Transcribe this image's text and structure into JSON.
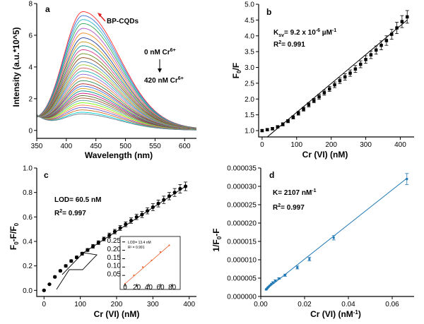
{
  "chart_data": [
    {
      "panel": "a",
      "type": "line",
      "xlabel": "Wavelength (nm)",
      "ylabel": "Intensity (a.u.*10^5)",
      "xlim": [
        350,
        620
      ],
      "ylim": [
        -0.5,
        8
      ],
      "xticks": [
        350,
        400,
        450,
        500,
        550,
        600
      ],
      "yticks": [
        0,
        2,
        4,
        6,
        8
      ],
      "peak_x": 428,
      "peak_values": [
        7.45,
        7.2,
        6.95,
        6.7,
        6.4,
        6.1,
        5.8,
        5.55,
        5.3,
        5.05,
        4.8,
        4.55,
        4.3,
        4.1,
        3.9,
        3.7,
        3.5,
        3.3,
        3.1,
        2.9,
        2.75,
        2.6,
        2.45,
        2.3,
        2.15,
        2.0,
        1.85,
        1.7,
        1.55,
        1.4,
        1.25,
        1.1,
        1.0
      ],
      "series_colors": [
        "#ff2a2a",
        "#3a6fd6",
        "#29b5c7",
        "#2fa84f",
        "#b14fc5",
        "#f08a24",
        "#1f3d99",
        "#c79b1a",
        "#0e8f8f",
        "#d63a8f",
        "#6b8e23",
        "#8b4513",
        "#4682b4",
        "#9acd32",
        "#cd5c5c",
        "#20b2aa",
        "#9370db",
        "#e07b39",
        "#2e8b57",
        "#b22222",
        "#4169e1",
        "#daa520",
        "#008b8b",
        "#c71585",
        "#556b2f",
        "#a0522d",
        "#5f9ea0",
        "#7cfc00",
        "#ff7f50",
        "#6a5acd",
        "#d2691e",
        "#00ced1",
        "#708090"
      ],
      "labels": {
        "panel_letter": "a",
        "series_label": "BP-CQDs",
        "start_conc": "0 nM Cr",
        "start_sup": "6+",
        "end_conc": "420 nM Cr",
        "end_sup": "6+"
      }
    },
    {
      "panel": "b",
      "type": "scatter",
      "xlabel": "Cr (VI) (nM)",
      "ylabel_main": "F",
      "ylabel_sub": "0",
      "ylabel_tail": "/F",
      "xlim": [
        -10,
        440
      ],
      "ylim": [
        0.8,
        5.0
      ],
      "xticks": [
        0,
        100,
        200,
        300,
        400
      ],
      "yticks": [
        1.0,
        1.5,
        2.0,
        2.5,
        3.0,
        3.5,
        4.0,
        4.5,
        5.0
      ],
      "x": [
        0,
        15,
        30,
        45,
        60,
        75,
        90,
        105,
        120,
        135,
        150,
        165,
        180,
        195,
        210,
        225,
        240,
        255,
        270,
        285,
        300,
        315,
        330,
        345,
        360,
        375,
        390,
        405,
        420
      ],
      "y": [
        1.0,
        1.03,
        1.06,
        1.12,
        1.2,
        1.3,
        1.42,
        1.55,
        1.68,
        1.82,
        1.95,
        2.07,
        2.2,
        2.32,
        2.45,
        2.58,
        2.7,
        2.82,
        2.95,
        3.1,
        3.25,
        3.4,
        3.55,
        3.7,
        3.85,
        4.05,
        4.25,
        4.45,
        4.6
      ],
      "err": [
        0.03,
        0.03,
        0.04,
        0.04,
        0.05,
        0.05,
        0.05,
        0.06,
        0.06,
        0.07,
        0.07,
        0.08,
        0.08,
        0.08,
        0.09,
        0.09,
        0.1,
        0.1,
        0.11,
        0.11,
        0.12,
        0.12,
        0.13,
        0.14,
        0.15,
        0.16,
        0.18,
        0.19,
        0.2
      ],
      "fit": {
        "x": [
          15,
          420
        ],
        "y": [
          0.8,
          4.5
        ]
      },
      "labels": {
        "panel_letter": "b",
        "ksv_prefix": "K",
        "ksv_sub": "sv",
        "ksv_value": "= 9.2 x 10",
        "ksv_exp": "-6",
        "ksv_unit": " µM",
        "ksv_unit_exp": "-1",
        "r2_prefix": "R",
        "r2_sup": "2",
        "r2_value": "= 0.991"
      }
    },
    {
      "panel": "c",
      "type": "scatter",
      "xlabel": "Cr (VI) (nM)",
      "ylabel_main": "F",
      "ylabel_sub1": "0",
      "ylabel_mid": "-F/F",
      "ylabel_sub2": "0",
      "xlim": [
        -20,
        420
      ],
      "ylim": [
        -0.05,
        1.0
      ],
      "xticks": [
        0,
        100,
        200,
        300,
        400
      ],
      "yticks": [
        0.0,
        0.2,
        0.4,
        0.6,
        0.8,
        1.0
      ],
      "x": [
        0,
        15,
        30,
        45,
        60,
        75,
        90,
        105,
        120,
        135,
        150,
        165,
        180,
        195,
        210,
        225,
        240,
        255,
        270,
        285,
        300,
        315,
        330,
        345,
        360,
        375,
        390
      ],
      "y": [
        0.0,
        0.05,
        0.11,
        0.16,
        0.2,
        0.24,
        0.27,
        0.3,
        0.33,
        0.36,
        0.39,
        0.42,
        0.45,
        0.48,
        0.51,
        0.54,
        0.57,
        0.6,
        0.62,
        0.65,
        0.68,
        0.71,
        0.74,
        0.77,
        0.8,
        0.83,
        0.85
      ],
      "err": [
        0.005,
        0.005,
        0.008,
        0.008,
        0.01,
        0.01,
        0.01,
        0.012,
        0.012,
        0.015,
        0.015,
        0.015,
        0.018,
        0.018,
        0.02,
        0.02,
        0.022,
        0.022,
        0.025,
        0.025,
        0.028,
        0.028,
        0.03,
        0.03,
        0.032,
        0.035,
        0.035
      ],
      "fit": {
        "x": [
          105,
          390
        ],
        "y": [
          0.3,
          0.85
        ]
      },
      "labels": {
        "panel_letter": "c",
        "lod": "LOD= 60.5 nM",
        "r2_prefix": "R",
        "r2_sup": "2",
        "r2_value": "= 0.997"
      },
      "inset": {
        "type": "scatter",
        "xlim": [
          0,
          90
        ],
        "ylim": [
          0,
          0.27
        ],
        "xticks": [
          0,
          20,
          40,
          60,
          80
        ],
        "yticks": [
          0.05,
          0.1,
          0.15,
          0.2,
          0.25
        ],
        "x": [
          0,
          15,
          30,
          45,
          60,
          75
        ],
        "y": [
          0.0,
          0.05,
          0.1,
          0.14,
          0.19,
          0.23
        ],
        "line_color": "#e8602c",
        "marker_color": "#e8602c",
        "lod": "LOD= 13.4 nM",
        "r2": "R² = 0.991"
      }
    },
    {
      "panel": "d",
      "type": "scatter",
      "xlabel_main": "Cr (VI) (nM",
      "xlabel_sup": "-1",
      "xlabel_tail": ")",
      "ylabel_main": "1/F",
      "ylabel_sub": "0",
      "ylabel_tail": "-F",
      "xlim": [
        0,
        0.07
      ],
      "ylim": [
        0,
        3.5e-05
      ],
      "xticks": [
        0.0,
        0.02,
        0.04,
        0.06
      ],
      "xtick_labels": [
        "0.00",
        "0.02",
        "0.04",
        "0.06"
      ],
      "yticks": [
        0.0,
        5e-06,
        1e-05,
        1.5e-05,
        2e-05,
        2.5e-05,
        3e-05,
        3.5e-05
      ],
      "ytick_labels": [
        "0.000000",
        "0.000005",
        "0.000010",
        "0.000015",
        "0.000020",
        "0.000025",
        "0.000030",
        "0.000035"
      ],
      "x": [
        0.00238,
        0.00256,
        0.00278,
        0.00303,
        0.00333,
        0.0037,
        0.00417,
        0.00476,
        0.00556,
        0.00667,
        0.00833,
        0.0111,
        0.0167,
        0.0222,
        0.0333,
        0.0667
      ],
      "y": [
        1.9e-06,
        1.95e-06,
        2.1e-06,
        2.3e-06,
        2.5e-06,
        2.7e-06,
        3e-06,
        3.4e-06,
        3.8e-06,
        4.3e-06,
        4.9e-06,
        5.8e-06,
        7.9e-06,
        1.02e-05,
        1.6e-05,
        3.2e-05
      ],
      "err": [
        1e-07,
        1e-07,
        1e-07,
        1e-07,
        1e-07,
        1e-07,
        1e-07,
        1e-07,
        2e-07,
        2e-07,
        2e-07,
        3e-07,
        4e-07,
        5e-07,
        6e-07,
        1.5e-06
      ],
      "fit": {
        "x": [
          0.002,
          0.0667
        ],
        "y": [
          1.7e-06,
          3.22e-05
        ]
      },
      "color": "#1f77b4",
      "labels": {
        "panel_letter": "d",
        "k_value": "K= 2107 nM",
        "k_exp": "-1",
        "r2_prefix": "R",
        "r2_sup": "2",
        "r2_value": "= 0.997"
      }
    }
  ]
}
